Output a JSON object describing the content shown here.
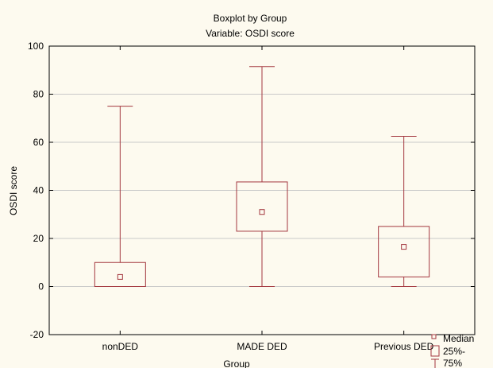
{
  "chart_data": {
    "type": "boxplot",
    "title": "Boxplot by Group",
    "subtitle": "Variable: OSDI score",
    "xlabel": "Group",
    "ylabel": "OSDI score",
    "ylim": [
      -20,
      100
    ],
    "yticks": [
      -20,
      0,
      20,
      40,
      60,
      80,
      100
    ],
    "ytick_labels": [
      "-20",
      "0",
      "20",
      "40",
      "60",
      "80",
      "100"
    ],
    "grid": true,
    "legend_position": "bottom-right",
    "categories": [
      "nonDED",
      "MADE DED",
      "Previous DED"
    ],
    "stats": [
      {
        "group": "nonDED",
        "median": 4,
        "q1": 0,
        "q3": 10,
        "min": 0,
        "max": 75
      },
      {
        "group": "MADE DED",
        "median": 31,
        "q1": 23,
        "q3": 43.5,
        "min": 0,
        "max": 91.5
      },
      {
        "group": "Previous DED",
        "median": 16.5,
        "q1": 4,
        "q3": 25,
        "min": 0,
        "max": 62.5
      }
    ],
    "legend": {
      "median": "Median",
      "box": "25%-",
      "whisker": "75%"
    },
    "colors": {
      "box": "#a3373f",
      "background": "#fdfaef",
      "grid": "#c9c9c9",
      "axis": "#000000"
    }
  }
}
